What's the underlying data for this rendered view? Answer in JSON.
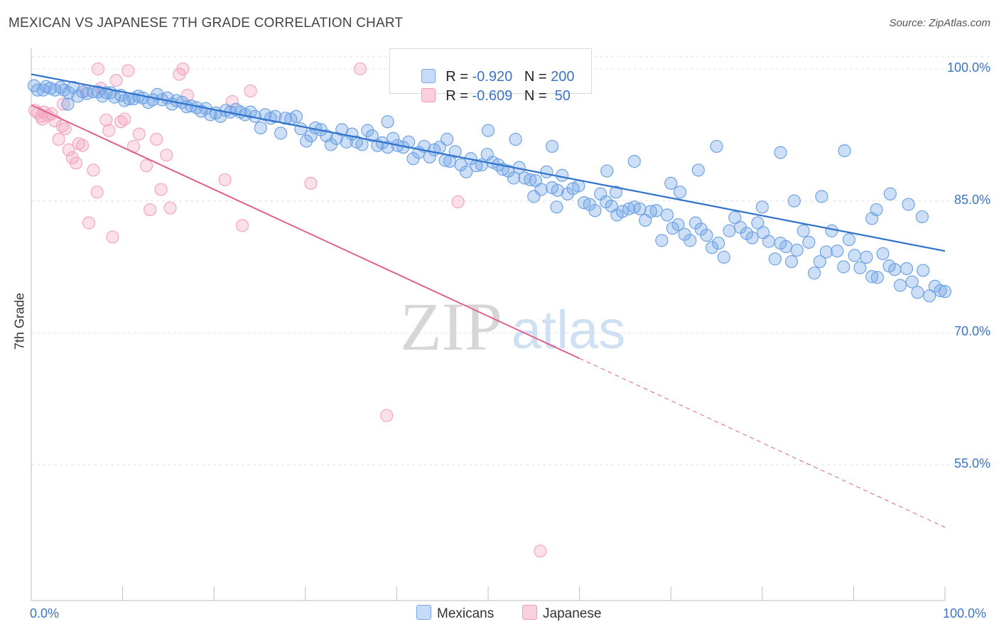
{
  "title": "MEXICAN VS JAPANESE 7TH GRADE CORRELATION CHART",
  "source": "Source: ZipAtlas.com",
  "watermark": {
    "zip": "ZIP",
    "atlas": "atlas"
  },
  "colors": {
    "mexicans": "#6fa3e6",
    "mexicans_line": "#2f72c9",
    "japanese": "#f3a6bf",
    "japanese_line": "#e0608b",
    "tick_text": "#3b74c5"
  },
  "legend": {
    "rows": [
      {
        "r_label": "R = ",
        "r_value": "-0.920",
        "n_label": "N = ",
        "n_value": "200"
      },
      {
        "r_label": "R = ",
        "r_value": "-0.609",
        "n_label": "N = ",
        "n_value": " 50"
      }
    ]
  },
  "bottom_legend": [
    "Mexicans",
    "Japanese"
  ],
  "chart_data": {
    "type": "scatter",
    "ylabel": "7th Grade",
    "xlim": [
      0,
      100
    ],
    "ylim": [
      42,
      101.5
    ],
    "x_tick_labels": [
      "0.0%",
      "100.0%"
    ],
    "y_ticks": [
      {
        "value": 100,
        "label": "100.0%"
      },
      {
        "value": 85,
        "label": "85.0%"
      },
      {
        "value": 70,
        "label": "70.0%"
      },
      {
        "value": 55,
        "label": "55.0%"
      }
    ],
    "series": [
      {
        "name": "Mexicans",
        "trend": {
          "x": [
            0,
            100
          ],
          "y": [
            99.4,
            79.3
          ]
        },
        "points": [
          [
            0.3,
            98.1
          ],
          [
            0.7,
            97.6
          ],
          [
            1.3,
            97.6
          ],
          [
            1.6,
            98.0
          ],
          [
            2.1,
            97.8
          ],
          [
            2.6,
            97.6
          ],
          [
            3.2,
            97.9
          ],
          [
            3.6,
            97.6
          ],
          [
            4.1,
            97.3
          ],
          [
            4.6,
            97.9
          ],
          [
            5.1,
            96.9
          ],
          [
            5.6,
            97.4
          ],
          [
            6.1,
            97.2
          ],
          [
            6.8,
            97.4
          ],
          [
            7.3,
            97.4
          ],
          [
            7.8,
            96.9
          ],
          [
            8.2,
            97.3
          ],
          [
            8.7,
            97.3
          ],
          [
            9.1,
            96.8
          ],
          [
            9.8,
            97.0
          ],
          [
            10.2,
            96.4
          ],
          [
            10.7,
            96.6
          ],
          [
            11.2,
            96.6
          ],
          [
            11.7,
            96.9
          ],
          [
            12.2,
            96.7
          ],
          [
            12.8,
            96.2
          ],
          [
            13.3,
            96.5
          ],
          [
            13.8,
            97.1
          ],
          [
            14.3,
            96.5
          ],
          [
            14.9,
            96.7
          ],
          [
            15.4,
            96.0
          ],
          [
            15.9,
            96.4
          ],
          [
            16.5,
            96.2
          ],
          [
            17.0,
            95.7
          ],
          [
            17.5,
            95.8
          ],
          [
            18.1,
            95.6
          ],
          [
            18.6,
            95.2
          ],
          [
            19.1,
            95.5
          ],
          [
            19.6,
            94.8
          ],
          [
            20.2,
            95.0
          ],
          [
            20.7,
            94.6
          ],
          [
            21.3,
            95.3
          ],
          [
            21.8,
            95.1
          ],
          [
            22.4,
            95.4
          ],
          [
            22.9,
            95.1
          ],
          [
            23.4,
            94.8
          ],
          [
            24.0,
            95.1
          ],
          [
            24.5,
            94.6
          ],
          [
            25.1,
            93.3
          ],
          [
            25.6,
            94.8
          ],
          [
            26.2,
            94.4
          ],
          [
            26.7,
            94.6
          ],
          [
            27.3,
            92.7
          ],
          [
            27.8,
            94.4
          ],
          [
            28.4,
            94.3
          ],
          [
            29.0,
            94.6
          ],
          [
            29.5,
            93.2
          ],
          [
            30.1,
            91.8
          ],
          [
            30.6,
            92.4
          ],
          [
            31.1,
            93.3
          ],
          [
            31.7,
            93.1
          ],
          [
            32.3,
            92.4
          ],
          [
            32.8,
            91.4
          ],
          [
            33.4,
            92.1
          ],
          [
            34.0,
            93.1
          ],
          [
            34.5,
            91.7
          ],
          [
            35.1,
            92.6
          ],
          [
            35.6,
            91.7
          ],
          [
            36.2,
            91.4
          ],
          [
            36.8,
            93.0
          ],
          [
            37.3,
            92.4
          ],
          [
            37.9,
            91.3
          ],
          [
            38.4,
            91.6
          ],
          [
            39.0,
            91.1
          ],
          [
            39.6,
            92.1
          ],
          [
            40.1,
            91.3
          ],
          [
            40.7,
            91.1
          ],
          [
            41.3,
            91.7
          ],
          [
            41.8,
            89.8
          ],
          [
            42.4,
            90.5
          ],
          [
            43.0,
            91.2
          ],
          [
            43.6,
            90.0
          ],
          [
            44.1,
            90.8
          ],
          [
            44.7,
            91.1
          ],
          [
            45.3,
            89.6
          ],
          [
            45.8,
            89.5
          ],
          [
            46.4,
            90.6
          ],
          [
            47.0,
            89.1
          ],
          [
            47.6,
            88.3
          ],
          [
            48.1,
            89.8
          ],
          [
            48.7,
            89.0
          ],
          [
            49.3,
            89.1
          ],
          [
            49.9,
            90.3
          ],
          [
            50.5,
            89.4
          ],
          [
            51.1,
            89.1
          ],
          [
            51.6,
            88.6
          ],
          [
            52.2,
            88.4
          ],
          [
            52.8,
            87.6
          ],
          [
            53.4,
            88.8
          ],
          [
            54.0,
            87.6
          ],
          [
            54.6,
            87.4
          ],
          [
            55.2,
            87.3
          ],
          [
            55.8,
            86.3
          ],
          [
            56.4,
            88.3
          ],
          [
            57.0,
            86.5
          ],
          [
            57.6,
            86.2
          ],
          [
            58.1,
            87.9
          ],
          [
            58.7,
            85.8
          ],
          [
            59.3,
            86.4
          ],
          [
            59.9,
            86.7
          ],
          [
            60.5,
            84.8
          ],
          [
            61.1,
            84.6
          ],
          [
            61.7,
            83.9
          ],
          [
            62.3,
            85.8
          ],
          [
            62.9,
            84.9
          ],
          [
            63.5,
            84.4
          ],
          [
            64.1,
            83.4
          ],
          [
            64.7,
            83.8
          ],
          [
            65.4,
            84.1
          ],
          [
            66.0,
            84.3
          ],
          [
            66.6,
            84.1
          ],
          [
            67.2,
            82.8
          ],
          [
            67.8,
            83.8
          ],
          [
            68.4,
            83.9
          ],
          [
            69.0,
            80.5
          ],
          [
            69.6,
            83.4
          ],
          [
            70.2,
            81.9
          ],
          [
            70.8,
            82.3
          ],
          [
            71.5,
            81.2
          ],
          [
            72.1,
            80.5
          ],
          [
            72.7,
            82.5
          ],
          [
            73.3,
            81.8
          ],
          [
            73.9,
            81.1
          ],
          [
            74.5,
            79.7
          ],
          [
            75.2,
            80.2
          ],
          [
            75.8,
            78.6
          ],
          [
            76.4,
            81.6
          ],
          [
            77.0,
            83.1
          ],
          [
            77.6,
            82.0
          ],
          [
            78.3,
            81.3
          ],
          [
            78.9,
            80.8
          ],
          [
            79.5,
            82.5
          ],
          [
            80.1,
            81.4
          ],
          [
            80.7,
            80.4
          ],
          [
            81.4,
            78.4
          ],
          [
            82.0,
            80.2
          ],
          [
            82.6,
            79.8
          ],
          [
            83.2,
            78.1
          ],
          [
            83.8,
            79.4
          ],
          [
            84.5,
            81.6
          ],
          [
            85.1,
            80.3
          ],
          [
            85.7,
            76.8
          ],
          [
            86.3,
            78.1
          ],
          [
            87.0,
            79.2
          ],
          [
            87.6,
            81.6
          ],
          [
            88.2,
            79.3
          ],
          [
            88.9,
            77.5
          ],
          [
            89.5,
            80.6
          ],
          [
            90.1,
            78.8
          ],
          [
            90.7,
            77.4
          ],
          [
            91.4,
            78.6
          ],
          [
            92.0,
            76.4
          ],
          [
            92.6,
            76.3
          ],
          [
            93.2,
            79.0
          ],
          [
            93.9,
            77.6
          ],
          [
            94.5,
            77.2
          ],
          [
            95.1,
            75.4
          ],
          [
            95.8,
            77.3
          ],
          [
            96.4,
            75.8
          ],
          [
            97.0,
            74.6
          ],
          [
            97.6,
            77.1
          ],
          [
            98.3,
            74.2
          ],
          [
            98.9,
            75.3
          ],
          [
            99.5,
            74.8
          ],
          [
            100.0,
            74.7
          ],
          [
            4.0,
            96.0
          ],
          [
            39.0,
            94.0
          ],
          [
            57.0,
            91.2
          ],
          [
            75.0,
            91.2
          ],
          [
            82.0,
            90.5
          ],
          [
            89.0,
            90.7
          ],
          [
            66.0,
            89.5
          ],
          [
            70.0,
            87.0
          ],
          [
            73.0,
            88.5
          ],
          [
            63.0,
            88.4
          ],
          [
            86.5,
            85.5
          ],
          [
            83.5,
            85.0
          ],
          [
            80.0,
            84.3
          ],
          [
            92.0,
            83.0
          ],
          [
            96.0,
            84.6
          ],
          [
            97.5,
            83.2
          ],
          [
            94.0,
            85.8
          ],
          [
            92.5,
            84.0
          ],
          [
            71.0,
            86.0
          ],
          [
            64.0,
            86.0
          ],
          [
            55.0,
            85.5
          ],
          [
            57.5,
            84.3
          ],
          [
            50.0,
            93.0
          ],
          [
            53.0,
            92.0
          ],
          [
            45.5,
            92.0
          ]
        ]
      },
      {
        "name": "Japanese",
        "trend": {
          "x": [
            0,
            60
          ],
          "y": [
            95.9,
            67.1
          ],
          "dashed_to": {
            "x": 100,
            "y": 47.9
          }
        },
        "points": [
          [
            0.4,
            95.3
          ],
          [
            0.7,
            95.0
          ],
          [
            1.1,
            94.6
          ],
          [
            1.4,
            95.1
          ],
          [
            1.8,
            94.7
          ],
          [
            2.2,
            94.9
          ],
          [
            2.6,
            94.1
          ],
          [
            3.0,
            92.0
          ],
          [
            3.4,
            93.5
          ],
          [
            3.7,
            93.2
          ],
          [
            4.1,
            90.8
          ],
          [
            4.5,
            89.9
          ],
          [
            4.9,
            89.3
          ],
          [
            5.2,
            91.5
          ],
          [
            5.6,
            91.3
          ],
          [
            6.0,
            97.5
          ],
          [
            6.3,
            82.5
          ],
          [
            6.8,
            88.5
          ],
          [
            7.2,
            86.0
          ],
          [
            7.6,
            97.8
          ],
          [
            8.2,
            94.2
          ],
          [
            8.5,
            93.0
          ],
          [
            8.9,
            80.9
          ],
          [
            9.3,
            98.7
          ],
          [
            9.8,
            94.0
          ],
          [
            10.2,
            94.3
          ],
          [
            10.6,
            99.8
          ],
          [
            11.2,
            91.2
          ],
          [
            11.8,
            92.6
          ],
          [
            12.6,
            89.0
          ],
          [
            13.0,
            84.0
          ],
          [
            13.7,
            92.0
          ],
          [
            14.2,
            86.3
          ],
          [
            14.8,
            90.2
          ],
          [
            15.2,
            84.2
          ],
          [
            16.2,
            99.4
          ],
          [
            16.6,
            100.0
          ],
          [
            17.1,
            97.0
          ],
          [
            21.2,
            87.4
          ],
          [
            22.0,
            96.3
          ],
          [
            23.1,
            82.2
          ],
          [
            24.0,
            97.5
          ],
          [
            30.6,
            87.0
          ],
          [
            36.0,
            100.0
          ],
          [
            38.9,
            60.6
          ],
          [
            46.7,
            84.9
          ],
          [
            55.7,
            45.2
          ],
          [
            7.3,
            100.0
          ],
          [
            1.2,
            94.3
          ],
          [
            3.5,
            96.0
          ]
        ]
      }
    ]
  }
}
